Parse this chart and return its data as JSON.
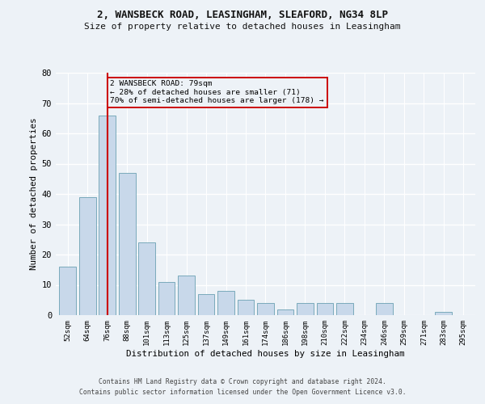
{
  "title_line1": "2, WANSBECK ROAD, LEASINGHAM, SLEAFORD, NG34 8LP",
  "title_line2": "Size of property relative to detached houses in Leasingham",
  "xlabel": "Distribution of detached houses by size in Leasingham",
  "ylabel": "Number of detached properties",
  "categories": [
    "52sqm",
    "64sqm",
    "76sqm",
    "88sqm",
    "101sqm",
    "113sqm",
    "125sqm",
    "137sqm",
    "149sqm",
    "161sqm",
    "174sqm",
    "186sqm",
    "198sqm",
    "210sqm",
    "222sqm",
    "234sqm",
    "246sqm",
    "259sqm",
    "271sqm",
    "283sqm",
    "295sqm"
  ],
  "values": [
    16,
    39,
    66,
    47,
    24,
    11,
    13,
    7,
    8,
    5,
    4,
    2,
    4,
    4,
    4,
    0,
    4,
    0,
    0,
    1,
    0
  ],
  "bar_color": "#c8d8ea",
  "bar_edge_color": "#7aaabb",
  "highlight_bar_index": 2,
  "highlight_line_color": "#cc0000",
  "ylim": [
    0,
    80
  ],
  "yticks": [
    0,
    10,
    20,
    30,
    40,
    50,
    60,
    70,
    80
  ],
  "annotation_line1": "2 WANSBECK ROAD: 79sqm",
  "annotation_line2": "← 28% of detached houses are smaller (71)",
  "annotation_line3": "70% of semi-detached houses are larger (178) →",
  "annotation_box_color": "#cc0000",
  "footer_line1": "Contains HM Land Registry data © Crown copyright and database right 2024.",
  "footer_line2": "Contains public sector information licensed under the Open Government Licence v3.0.",
  "background_color": "#edf2f7",
  "grid_color": "#ffffff"
}
